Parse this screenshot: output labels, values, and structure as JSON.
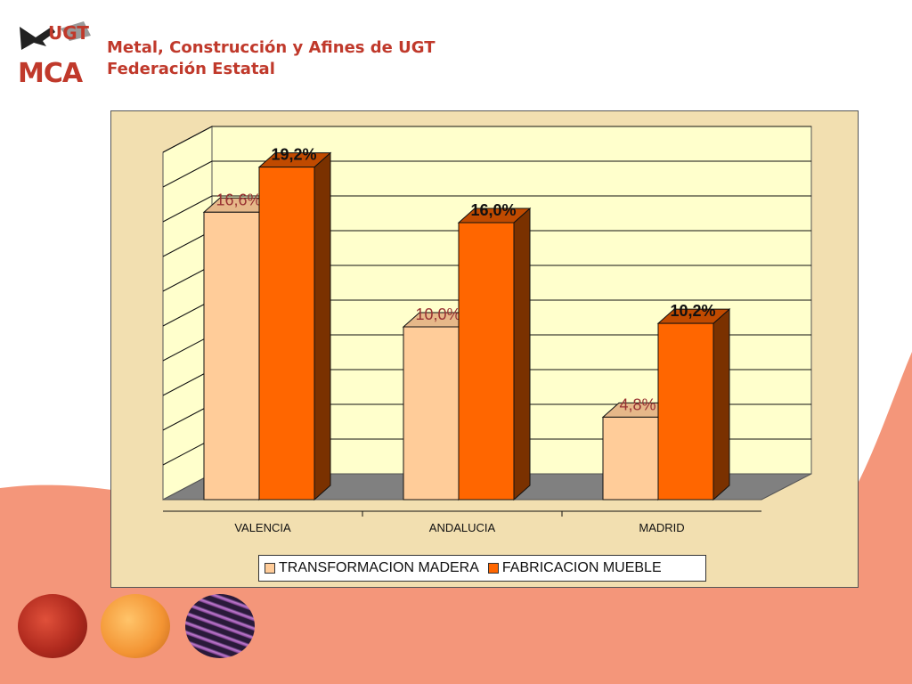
{
  "header": {
    "line1": "Metal, Construcción y Afines de UGT",
    "line2": "Federación Estatal"
  },
  "logo": {
    "top_text": "UGT",
    "bottom_text": "MCA"
  },
  "colors": {
    "brand_red": "#c0392b",
    "wave": "#f4967a",
    "panel": "#f2dfb0",
    "plot_back": "#ffffcc",
    "floor": "#808080",
    "series1": "#ffcc99",
    "series2": "#ff6600",
    "series2_side": "#7a3100",
    "label1_color": "#993333",
    "label2_color": "#111111"
  },
  "chart_data": {
    "type": "bar",
    "categories": [
      "VALENCIA",
      "ANDALUCIA",
      "MADRID"
    ],
    "series": [
      {
        "name": "TRANSFORMACION MADERA",
        "values": [
          16.6,
          10.0,
          4.8
        ],
        "labels": [
          "16,6%",
          "10,0%",
          "4,8%"
        ]
      },
      {
        "name": "FABRICACION MUEBLE",
        "values": [
          19.2,
          16.0,
          10.2
        ],
        "labels": [
          "19,2%",
          "16,0%",
          "10,2%"
        ]
      }
    ],
    "ylim": [
      0,
      20
    ],
    "grid": true,
    "legend_position": "bottom",
    "three_d": true
  }
}
